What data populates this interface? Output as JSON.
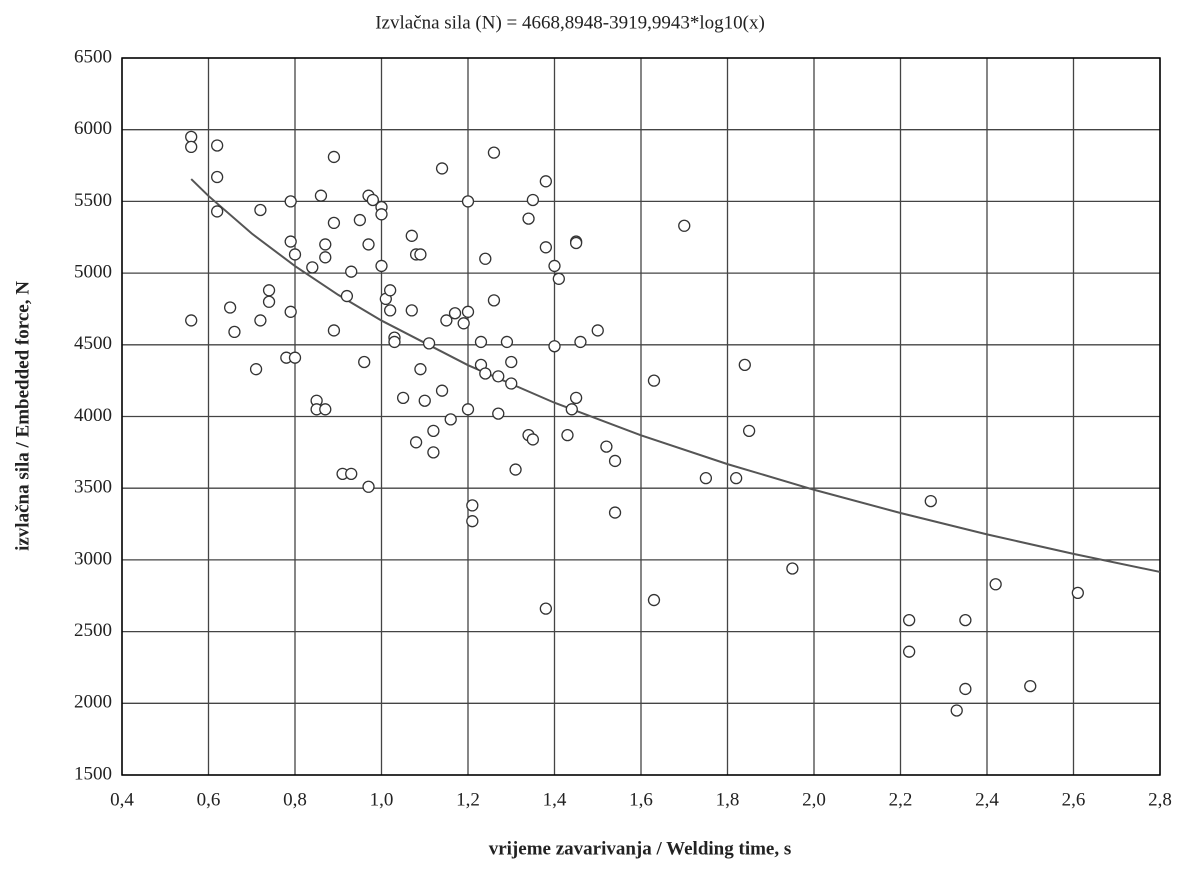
{
  "chart_data": {
    "type": "scatter",
    "title": "Izvlačna sila (N) = 4668,8948-3919,9943*log10(x)",
    "xlabel": "vrijeme zavarivanja / Welding time, s",
    "ylabel": "izvlačna sila / Embedded force, N",
    "xlim": [
      0.4,
      2.8
    ],
    "ylim": [
      1500,
      6500
    ],
    "xticks": [
      {
        "value": 0.4,
        "label": "0,4"
      },
      {
        "value": 0.6,
        "label": "0,6"
      },
      {
        "value": 0.8,
        "label": "0,8"
      },
      {
        "value": 1.0,
        "label": "1,0"
      },
      {
        "value": 1.2,
        "label": "1,2"
      },
      {
        "value": 1.4,
        "label": "1,4"
      },
      {
        "value": 1.6,
        "label": "1,6"
      },
      {
        "value": 1.8,
        "label": "1,8"
      },
      {
        "value": 2.0,
        "label": "2,0"
      },
      {
        "value": 2.2,
        "label": "2,2"
      },
      {
        "value": 2.4,
        "label": "2,4"
      },
      {
        "value": 2.6,
        "label": "2,6"
      },
      {
        "value": 2.8,
        "label": "2,8"
      }
    ],
    "yticks": [
      1500,
      2000,
      2500,
      3000,
      3500,
      4000,
      4500,
      5000,
      5500,
      6000,
      6500
    ],
    "grid": true,
    "marker_color": "#333333",
    "line_color": "#555555",
    "x": [
      0.56,
      0.56,
      0.56,
      0.62,
      0.62,
      0.62,
      0.65,
      0.66,
      0.71,
      0.72,
      0.72,
      0.74,
      0.74,
      0.78,
      0.79,
      0.79,
      0.79,
      0.8,
      0.8,
      0.84,
      0.85,
      0.85,
      0.86,
      0.87,
      0.87,
      0.87,
      0.89,
      0.89,
      0.89,
      0.91,
      0.92,
      0.93,
      0.93,
      0.95,
      0.96,
      0.97,
      0.97,
      0.97,
      0.98,
      1.0,
      1.0,
      1.0,
      1.01,
      1.02,
      1.02,
      1.03,
      1.03,
      1.05,
      1.07,
      1.07,
      1.08,
      1.08,
      1.09,
      1.09,
      1.1,
      1.11,
      1.12,
      1.12,
      1.14,
      1.14,
      1.15,
      1.16,
      1.17,
      1.19,
      1.2,
      1.2,
      1.2,
      1.21,
      1.21,
      1.23,
      1.23,
      1.24,
      1.24,
      1.26,
      1.26,
      1.27,
      1.27,
      1.29,
      1.3,
      1.3,
      1.31,
      1.34,
      1.34,
      1.35,
      1.35,
      1.38,
      1.38,
      1.38,
      1.4,
      1.4,
      1.41,
      1.43,
      1.44,
      1.45,
      1.45,
      1.45,
      1.46,
      1.5,
      1.52,
      1.54,
      1.54,
      1.63,
      1.63,
      1.7,
      1.75,
      1.82,
      1.84,
      1.85,
      1.95,
      2.22,
      2.22,
      2.27,
      2.33,
      2.35,
      2.35,
      2.42,
      2.5,
      2.61
    ],
    "values": [
      5950,
      5880,
      4670,
      5890,
      5670,
      5430,
      4760,
      4590,
      4330,
      5440,
      4670,
      4880,
      4800,
      4410,
      5500,
      5220,
      4730,
      5130,
      4410,
      5040,
      4110,
      4050,
      5540,
      5200,
      5110,
      4050,
      5810,
      5350,
      4600,
      3600,
      4840,
      3600,
      5010,
      5370,
      4380,
      5540,
      5200,
      3510,
      5510,
      5460,
      5410,
      5050,
      4820,
      4880,
      4740,
      4550,
      4520,
      4130,
      5260,
      4740,
      5130,
      3820,
      5130,
      4330,
      4110,
      4510,
      3900,
      3750,
      5730,
      4180,
      4670,
      3980,
      4720,
      4650,
      5500,
      4730,
      4050,
      3380,
      3270,
      4520,
      4360,
      5100,
      4300,
      5840,
      4810,
      4280,
      4020,
      4520,
      4380,
      4230,
      3630,
      5380,
      3870,
      5510,
      3840,
      5640,
      5180,
      2660,
      5050,
      4490,
      4960,
      3870,
      4050,
      5220,
      5210,
      4130,
      4520,
      4600,
      3790,
      3690,
      3330,
      4250,
      2720,
      5330,
      3570,
      3570,
      4360,
      3900,
      2940,
      2580,
      2360,
      3410,
      1950,
      2580,
      2100,
      2830,
      2120,
      2770
    ],
    "fit": {
      "x": [
        0.56,
        0.6,
        0.7,
        0.8,
        0.9,
        1.0,
        1.2,
        1.4,
        1.6,
        1.8,
        2.0,
        2.2,
        2.4,
        2.6,
        2.8
      ],
      "values": [
        5656,
        5538,
        5276,
        5049,
        4848,
        4669,
        4358,
        4096,
        3869,
        3668,
        3489,
        3327,
        3178,
        3042,
        2916
      ]
    }
  }
}
